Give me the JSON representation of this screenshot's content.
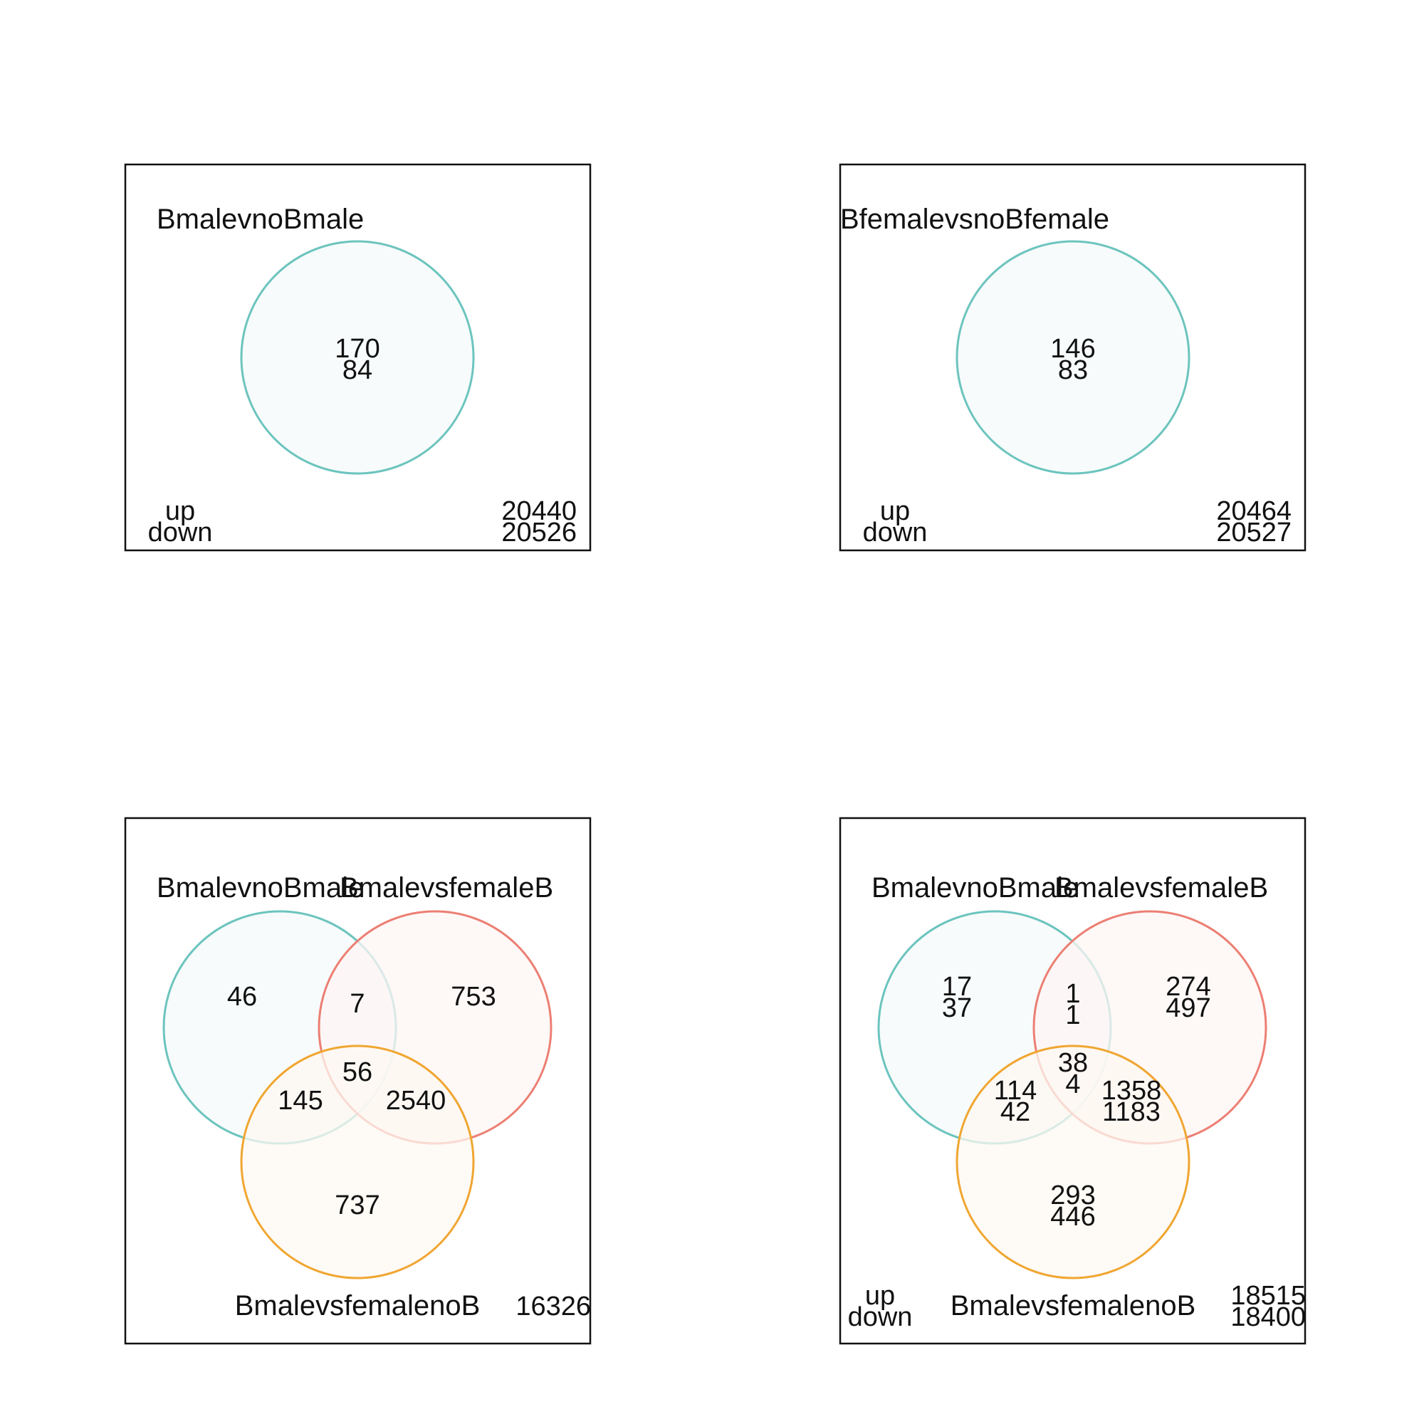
{
  "colors": {
    "set1": "#6cc4be",
    "set2": "#ec7f73",
    "set3": "#f0a631",
    "set1_fill": "#f4faf9",
    "set2_fill": "#fdf6f4",
    "set3_fill": "#fdf8f2",
    "frame": "#111111"
  },
  "panels": [
    {
      "sets": [
        "BmalevnoBmale"
      ],
      "regions": {
        "only1": [
          "170",
          "84"
        ]
      },
      "legend": [
        "up",
        "down"
      ],
      "outside": [
        "20440",
        "20526"
      ]
    },
    {
      "sets": [
        "BfemalevsnoBfemale"
      ],
      "regions": {
        "only1": [
          "146",
          "83"
        ]
      },
      "legend": [
        "up",
        "down"
      ],
      "outside": [
        "20464",
        "20527"
      ]
    },
    {
      "sets": [
        "BmalevnoBmale",
        "BmalevsfemaleB",
        "BmalevsfemalenoB"
      ],
      "regions": {
        "only1": [
          "46"
        ],
        "only2": [
          "7"
        ],
        "only3": [
          "753"
        ],
        "s12": [
          "56"
        ],
        "s13": [
          "145"
        ],
        "s23": [
          "2540"
        ],
        "s123": [
          "737"
        ]
      },
      "legend": [],
      "outside": [
        "16326"
      ]
    },
    {
      "sets": [
        "BmalevnoBmale",
        "BmalevsfemaleB",
        "BmalevsfemalenoB"
      ],
      "regions": {
        "only1": [
          "17",
          "37"
        ],
        "only2": [
          "1",
          "1"
        ],
        "only3": [
          "274",
          "497"
        ],
        "s12": [
          "38",
          "4"
        ],
        "s13": [
          "114",
          "42"
        ],
        "s23": [
          "1358",
          "1183"
        ],
        "s123": [
          "293",
          "446"
        ]
      },
      "legend": [
        "up",
        "down"
      ],
      "outside": [
        "18515",
        "18400"
      ]
    }
  ]
}
